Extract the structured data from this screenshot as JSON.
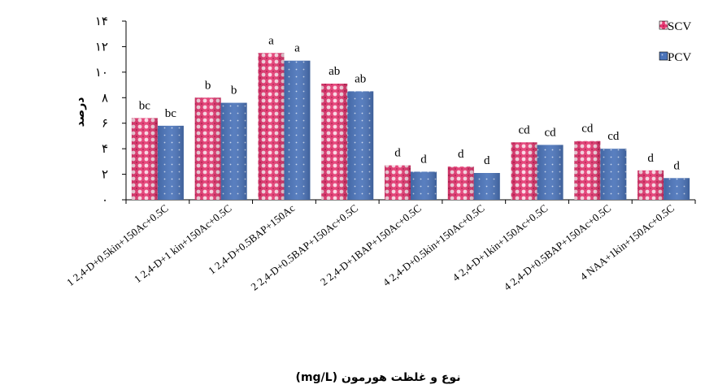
{
  "chart_data": {
    "type": "bar",
    "ylabel": "درصد",
    "xlabel": "نوع و غلظت هورمون (mg/L)",
    "ylim": [
      0,
      14
    ],
    "yticks": [
      "۰",
      "۲",
      "۴",
      "۶",
      "۸",
      "۱۰",
      "۱۲",
      "۱۴"
    ],
    "grid": false,
    "legend_position": "top-right",
    "categories": [
      "1 2,4-D+0.5kin+150Ac+0.5C",
      "1 2,4-D+1 kin+150Ac+0.5C",
      "1 2,4-D+0.5BAP+150Ac",
      "2 2,4-D+0.5BAP+150Ac+0.5C",
      "2 2,4-D+1BAP+150Ac+0.5C",
      "4 2,4-D+0.5kin+150Ac+0.5C",
      "4 2,4-D+1kin+150Ac+0.5C",
      "4 2,4-D+0.5BAP+150Ac+0.5C",
      "4 NAA+1kin+150Ac+0.5C"
    ],
    "series": [
      {
        "name": "SCV",
        "color": "#e8336f",
        "values": [
          6.4,
          8.0,
          11.5,
          9.1,
          2.7,
          2.6,
          4.5,
          4.6,
          2.3
        ],
        "labels": [
          "bc",
          "b",
          "a",
          "ab",
          "d",
          "d",
          "cd",
          "cd",
          "d"
        ]
      },
      {
        "name": "PCV",
        "color": "#4a72b8",
        "values": [
          5.8,
          7.6,
          10.9,
          8.5,
          2.2,
          2.1,
          4.3,
          4.0,
          1.7
        ],
        "labels": [
          "bc",
          "b",
          "a",
          "ab",
          "d",
          "d",
          "cd",
          "cd",
          "d"
        ]
      }
    ]
  }
}
